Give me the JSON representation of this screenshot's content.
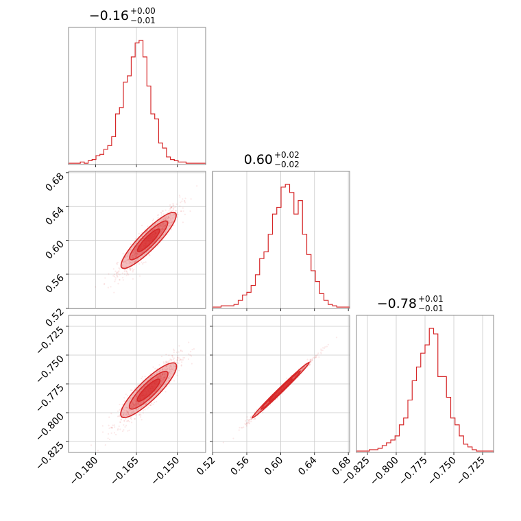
{
  "chart_data": {
    "type": "corner",
    "parameters": [
      {
        "title_value": "−0.16",
        "title_plus": "+0.00",
        "title_minus": "−0.01",
        "range": [
          -0.19,
          -0.1395
        ],
        "ticks": [
          -0.18,
          -0.165,
          -0.15
        ],
        "tick_labels": [
          "−0.180",
          "−0.165",
          "−0.150"
        ],
        "peak": -0.1605,
        "sigma": 0.0045
      },
      {
        "title_value": "0.60",
        "title_plus": "+0.02",
        "title_minus": "−0.02",
        "range": [
          0.5195,
          0.6815
        ],
        "ticks": [
          0.52,
          0.56,
          0.6,
          0.64,
          0.68
        ],
        "tick_labels": [
          "0.52",
          "0.56",
          "0.60",
          "0.64",
          "0.68"
        ],
        "peak": 0.6,
        "sigma": 0.016
      },
      {
        "title_value": "−0.78",
        "title_plus": "+0.01",
        "title_minus": "−0.01",
        "range": [
          -0.8345,
          -0.7155
        ],
        "ticks": [
          -0.825,
          -0.8,
          -0.775,
          -0.75,
          -0.725
        ],
        "tick_labels": [
          "−0.825",
          "−0.800",
          "−0.775",
          "−0.750",
          "−0.725"
        ],
        "peak": -0.7805,
        "sigma": 0.0115
      }
    ],
    "hist_counts": [
      [
        1,
        1,
        1,
        2,
        1,
        3,
        4,
        7,
        8,
        12,
        15,
        22,
        40,
        45,
        65,
        70,
        85,
        96,
        98,
        85,
        62,
        40,
        36,
        17,
        13,
        6,
        4,
        3,
        2,
        2,
        1,
        1,
        1,
        1,
        1
      ],
      [
        1,
        1,
        2,
        2,
        2,
        3,
        6,
        10,
        12,
        17,
        25,
        37,
        42,
        55,
        70,
        75,
        90,
        92,
        86,
        70,
        80,
        55,
        40,
        28,
        20,
        11,
        6,
        3,
        2,
        1,
        1,
        1
      ],
      [
        1,
        1,
        1,
        2,
        2,
        3,
        5,
        7,
        9,
        12,
        20,
        25,
        38,
        52,
        62,
        72,
        78,
        90,
        86,
        55,
        55,
        40,
        25,
        20,
        12,
        6,
        4,
        2,
        1,
        1,
        1,
        1
      ]
    ],
    "color": "#d62728",
    "grid": true
  }
}
